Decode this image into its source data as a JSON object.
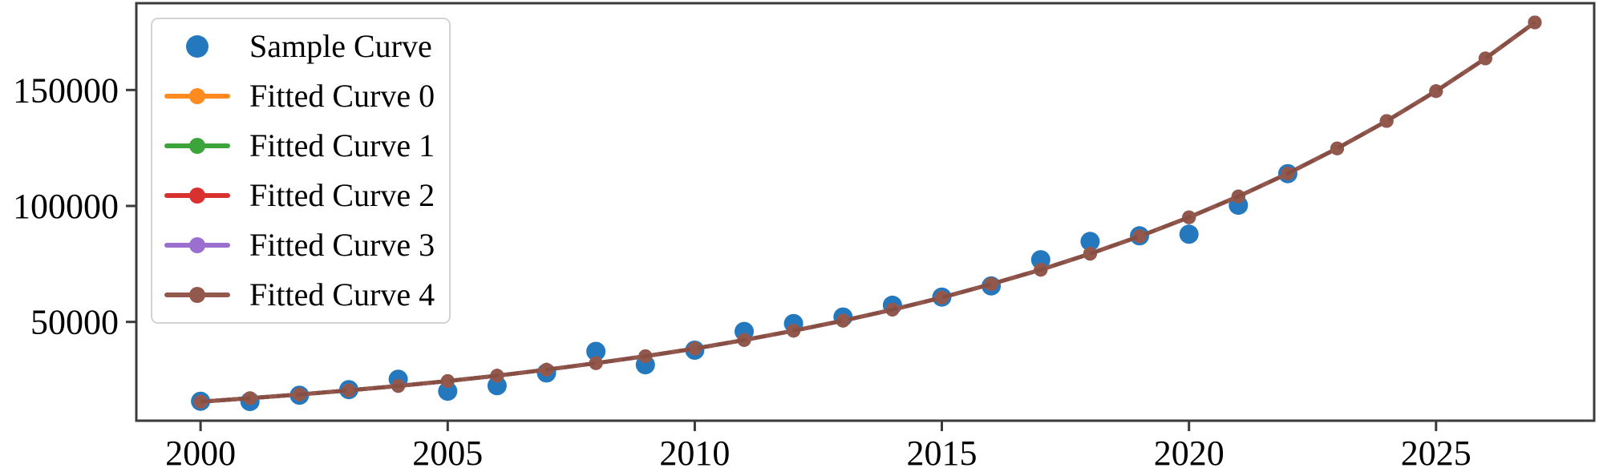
{
  "figure": {
    "background": "#ffffff",
    "spine_color": "#3b3b3b",
    "tick_label_color": "#000000"
  },
  "legend": {
    "position": "upper left",
    "items": [
      {
        "label": "Sample Curve",
        "type": "marker",
        "color": "#2478be"
      },
      {
        "label": "Fitted Curve 0",
        "type": "line-marker",
        "color": "#ff8b20"
      },
      {
        "label": "Fitted Curve 1",
        "type": "line-marker",
        "color": "#3da43c"
      },
      {
        "label": "Fitted Curve 2",
        "type": "line-marker",
        "color": "#d93030"
      },
      {
        "label": "Fitted Curve 3",
        "type": "line-marker",
        "color": "#9a6fd0"
      },
      {
        "label": "Fitted Curve 4",
        "type": "line-marker",
        "color": "#91584b"
      }
    ]
  },
  "chart_data": {
    "type": "scatter+line",
    "xlabel": "",
    "ylabel": "",
    "xlim": [
      1998.7,
      2028.2
    ],
    "ylim": [
      7400,
      187400
    ],
    "xticks": [
      2000,
      2005,
      2010,
      2015,
      2020,
      2025
    ],
    "yticks": [
      50000,
      100000,
      150000
    ],
    "grid": false,
    "legend_position": "upper left",
    "note": "Fitted Curves 0-4 coincide exactly; only the last-drawn brown curve is visible in the plot.",
    "series": [
      {
        "name": "Sample Curve",
        "type": "scatter",
        "color": "#2478be",
        "marker_radius": 12,
        "x": [
          2000,
          2001,
          2002,
          2003,
          2004,
          2005,
          2006,
          2007,
          2008,
          2009,
          2010,
          2011,
          2012,
          2013,
          2014,
          2015,
          2016,
          2017,
          2018,
          2019,
          2020,
          2021,
          2022
        ],
        "y": [
          15800,
          15700,
          18400,
          20800,
          25300,
          20100,
          22500,
          28000,
          37300,
          31500,
          37800,
          45900,
          49300,
          52100,
          57200,
          60700,
          65500,
          76800,
          84700,
          87100,
          87800,
          100300,
          113900
        ]
      },
      {
        "name": "Fitted Curve 0",
        "type": "line",
        "color": "#ff8b20",
        "x": [
          2000,
          2001,
          2002,
          2003,
          2004,
          2005,
          2006,
          2007,
          2008,
          2009,
          2010,
          2011,
          2012,
          2013,
          2014,
          2015,
          2016,
          2017,
          2018,
          2019,
          2020,
          2021,
          2022,
          2023,
          2024,
          2025,
          2026,
          2027
        ],
        "y": [
          15600,
          17100,
          18700,
          20500,
          22400,
          24500,
          26800,
          29400,
          32200,
          35200,
          38500,
          42200,
          46200,
          50500,
          55300,
          60500,
          66300,
          72500,
          79400,
          86900,
          95100,
          104100,
          114000,
          124800,
          136600,
          149500,
          163600,
          179100
        ]
      },
      {
        "name": "Fitted Curve 1",
        "type": "line",
        "color": "#3da43c",
        "x": [
          2000,
          2001,
          2002,
          2003,
          2004,
          2005,
          2006,
          2007,
          2008,
          2009,
          2010,
          2011,
          2012,
          2013,
          2014,
          2015,
          2016,
          2017,
          2018,
          2019,
          2020,
          2021,
          2022,
          2023,
          2024,
          2025,
          2026,
          2027
        ],
        "y": [
          15600,
          17100,
          18700,
          20500,
          22400,
          24500,
          26800,
          29400,
          32200,
          35200,
          38500,
          42200,
          46200,
          50500,
          55300,
          60500,
          66300,
          72500,
          79400,
          86900,
          95100,
          104100,
          114000,
          124800,
          136600,
          149500,
          163600,
          179100
        ]
      },
      {
        "name": "Fitted Curve 2",
        "type": "line",
        "color": "#d93030",
        "x": [
          2000,
          2001,
          2002,
          2003,
          2004,
          2005,
          2006,
          2007,
          2008,
          2009,
          2010,
          2011,
          2012,
          2013,
          2014,
          2015,
          2016,
          2017,
          2018,
          2019,
          2020,
          2021,
          2022,
          2023,
          2024,
          2025,
          2026,
          2027
        ],
        "y": [
          15600,
          17100,
          18700,
          20500,
          22400,
          24500,
          26800,
          29400,
          32200,
          35200,
          38500,
          42200,
          46200,
          50500,
          55300,
          60500,
          66300,
          72500,
          79400,
          86900,
          95100,
          104100,
          114000,
          124800,
          136600,
          149500,
          163600,
          179100
        ]
      },
      {
        "name": "Fitted Curve 3",
        "type": "line",
        "color": "#9a6fd0",
        "x": [
          2000,
          2001,
          2002,
          2003,
          2004,
          2005,
          2006,
          2007,
          2008,
          2009,
          2010,
          2011,
          2012,
          2013,
          2014,
          2015,
          2016,
          2017,
          2018,
          2019,
          2020,
          2021,
          2022,
          2023,
          2024,
          2025,
          2026,
          2027
        ],
        "y": [
          15600,
          17100,
          18700,
          20500,
          22400,
          24500,
          26800,
          29400,
          32200,
          35200,
          38500,
          42200,
          46200,
          50500,
          55300,
          60500,
          66300,
          72500,
          79400,
          86900,
          95100,
          104100,
          114000,
          124800,
          136600,
          149500,
          163600,
          179100
        ]
      },
      {
        "name": "Fitted Curve 4",
        "type": "line",
        "color": "#91584b",
        "marker_radius": 8.5,
        "x": [
          2000,
          2001,
          2002,
          2003,
          2004,
          2005,
          2006,
          2007,
          2008,
          2009,
          2010,
          2011,
          2012,
          2013,
          2014,
          2015,
          2016,
          2017,
          2018,
          2019,
          2020,
          2021,
          2022,
          2023,
          2024,
          2025,
          2026,
          2027
        ],
        "y": [
          15600,
          17100,
          18700,
          20500,
          22400,
          24500,
          26800,
          29400,
          32200,
          35200,
          38500,
          42200,
          46200,
          50500,
          55300,
          60500,
          66300,
          72500,
          79400,
          86900,
          95100,
          104100,
          114000,
          124800,
          136600,
          149500,
          163600,
          179100
        ]
      }
    ]
  }
}
